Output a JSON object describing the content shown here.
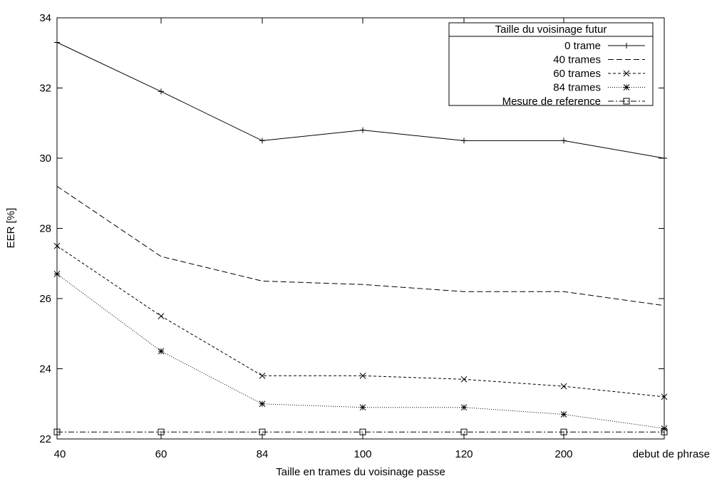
{
  "chart_data": {
    "type": "line",
    "title": "",
    "xlabel": "Taille en trames du voisinage passe",
    "ylabel": "EER [%]",
    "categories": [
      "40",
      "60",
      "84",
      "100",
      "120",
      "200",
      "debut de phrase"
    ],
    "ylim": [
      22,
      34
    ],
    "yticks": [
      "22",
      "24",
      "26",
      "28",
      "30",
      "32",
      "34"
    ],
    "grid": false,
    "legend": {
      "title": "Taille du voisinage futur",
      "placement": "top-right"
    },
    "series": [
      {
        "name": "0 trame",
        "values": [
          33.3,
          31.9,
          30.5,
          30.8,
          30.5,
          30.5,
          30.0
        ],
        "dash": "solid",
        "marker": "plus"
      },
      {
        "name": "40 trames",
        "values": [
          29.2,
          27.2,
          26.5,
          26.4,
          26.2,
          26.2,
          25.8
        ],
        "dash": "dashed",
        "marker": "none"
      },
      {
        "name": "60 trames",
        "values": [
          27.5,
          25.5,
          23.8,
          23.8,
          23.7,
          23.5,
          23.2
        ],
        "dash": "short-dashed",
        "marker": "cross"
      },
      {
        "name": "84 trames",
        "values": [
          26.7,
          24.5,
          23.0,
          22.9,
          22.9,
          22.7,
          22.3
        ],
        "dash": "dotted",
        "marker": "star"
      },
      {
        "name": "Mesure de reference",
        "values": [
          22.2,
          22.2,
          22.2,
          22.2,
          22.2,
          22.2,
          22.2
        ],
        "dash": "dash-dot",
        "marker": "square"
      }
    ]
  }
}
